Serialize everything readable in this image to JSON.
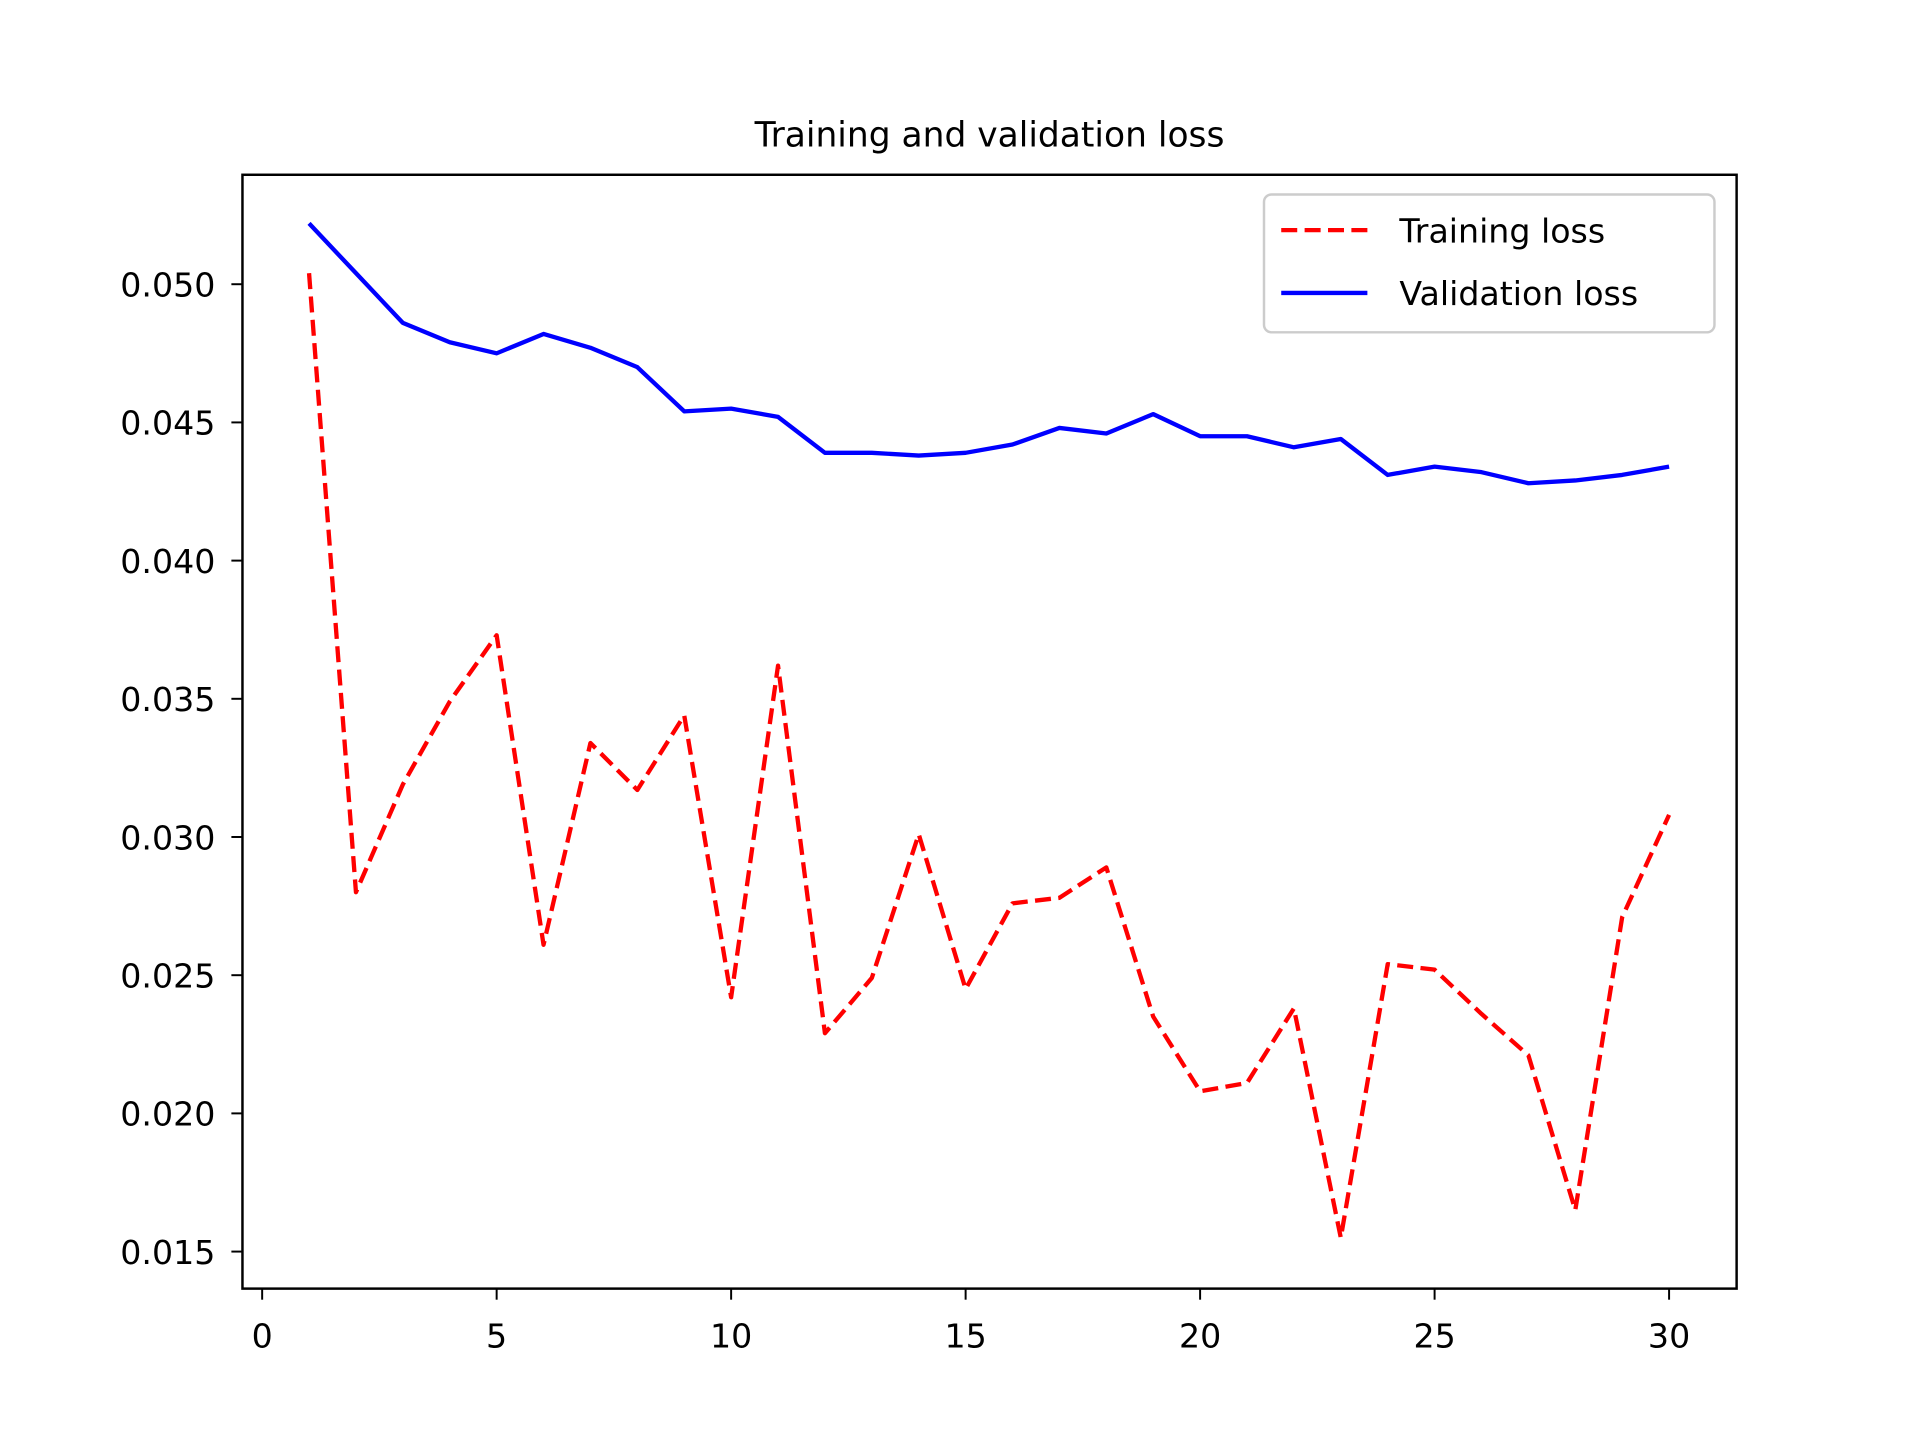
{
  "chart_data": {
    "type": "line",
    "title": "Training and validation loss",
    "xlabel": "",
    "ylabel": "",
    "xlim": [
      -0.42,
      31.44
    ],
    "ylim": [
      0.01366,
      0.05396
    ],
    "xticks": [
      0,
      5,
      10,
      15,
      20,
      25,
      30
    ],
    "xtick_labels": [
      "0",
      "5",
      "10",
      "15",
      "20",
      "25",
      "30"
    ],
    "yticks": [
      0.015,
      0.02,
      0.025,
      0.03,
      0.035,
      0.04,
      0.045,
      0.05
    ],
    "ytick_labels": [
      "0.015",
      "0.020",
      "0.025",
      "0.030",
      "0.035",
      "0.040",
      "0.045",
      "0.050"
    ],
    "grid": false,
    "legend_position": "top-right",
    "x": [
      1,
      2,
      3,
      4,
      5,
      6,
      7,
      8,
      9,
      10,
      11,
      12,
      13,
      14,
      15,
      16,
      17,
      18,
      19,
      20,
      21,
      22,
      23,
      24,
      25,
      26,
      27,
      28,
      29,
      30
    ],
    "series": [
      {
        "name": "Training loss",
        "color": "#ff0000",
        "style": "dashed",
        "values": [
          0.0504,
          0.028,
          0.0319,
          0.0349,
          0.0373,
          0.0261,
          0.0334,
          0.0317,
          0.0344,
          0.0242,
          0.0362,
          0.0229,
          0.0249,
          0.0301,
          0.0245,
          0.0276,
          0.0278,
          0.0289,
          0.0235,
          0.0208,
          0.0211,
          0.0238,
          0.0155,
          0.0254,
          0.0252,
          0.0236,
          0.0221,
          0.0165,
          0.0271,
          0.0308
        ]
      },
      {
        "name": "Validation loss",
        "color": "#0000ff",
        "style": "solid",
        "values": [
          0.0522,
          0.0504,
          0.0486,
          0.0479,
          0.0475,
          0.0482,
          0.0477,
          0.047,
          0.0454,
          0.0455,
          0.0452,
          0.0439,
          0.0439,
          0.0438,
          0.0439,
          0.0442,
          0.0448,
          0.0446,
          0.0453,
          0.0445,
          0.0445,
          0.0441,
          0.0444,
          0.0431,
          0.0434,
          0.0432,
          0.0428,
          0.0429,
          0.0431,
          0.0434
        ]
      }
    ]
  }
}
